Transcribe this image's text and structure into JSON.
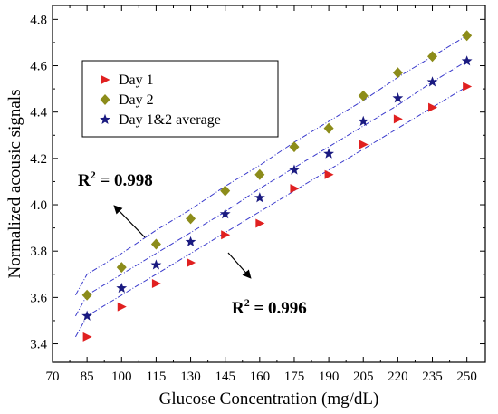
{
  "chart_data": {
    "type": "scatter",
    "xlabel": "Glucose Concentration (mg/dL)",
    "ylabel": "Normalized acousic signals",
    "xlim": [
      70,
      258
    ],
    "ylim": [
      3.32,
      4.86
    ],
    "x_ticks": [
      "70",
      "85",
      "100",
      "115",
      "130",
      "145",
      "160",
      "175",
      "190",
      "205",
      "220",
      "235",
      "250"
    ],
    "y_ticks": [
      "3.4",
      "3.6",
      "3.8",
      "4.0",
      "4.2",
      "4.4",
      "4.6",
      "4.8"
    ],
    "x_tick_values": [
      70,
      85,
      100,
      115,
      130,
      145,
      160,
      175,
      190,
      205,
      220,
      235,
      250
    ],
    "y_tick_values": [
      3.4,
      3.6,
      3.8,
      4.0,
      4.2,
      4.4,
      4.6,
      4.8
    ],
    "grid": false,
    "legend_position": "top-left",
    "x": [
      85,
      100,
      115,
      130,
      145,
      160,
      175,
      190,
      205,
      220,
      235,
      250
    ],
    "series": [
      {
        "name": "Day 1",
        "marker": "triangle-right",
        "color": "#e02020",
        "values": [
          3.43,
          3.56,
          3.66,
          3.75,
          3.87,
          3.92,
          4.07,
          4.13,
          4.26,
          4.37,
          4.42,
          4.51
        ],
        "fit": [
          3.43,
          3.52,
          3.61,
          3.7,
          3.79,
          3.88,
          3.97,
          4.06,
          4.15,
          4.24,
          4.33,
          4.42,
          4.51
        ]
      },
      {
        "name": "Day 2",
        "marker": "diamond",
        "color": "#8c8c1a",
        "values": [
          3.61,
          3.73,
          3.83,
          3.94,
          4.06,
          4.13,
          4.25,
          4.33,
          4.47,
          4.57,
          4.64,
          4.73
        ],
        "fit": [
          3.61,
          3.7,
          3.79,
          3.89,
          3.98,
          4.08,
          4.17,
          4.27,
          4.36,
          4.45,
          4.55,
          4.64,
          4.73
        ]
      },
      {
        "name": "Day 1&2 average",
        "marker": "star",
        "color": "#1a1a80",
        "values": [
          3.52,
          3.64,
          3.74,
          3.84,
          3.96,
          4.03,
          4.15,
          4.22,
          4.36,
          4.46,
          4.53,
          4.62
        ],
        "fit": [
          3.52,
          3.61,
          3.7,
          3.79,
          3.88,
          3.97,
          4.07,
          4.16,
          4.25,
          4.34,
          4.43,
          4.53,
          4.62
        ]
      }
    ],
    "fit_color": "#3a3acc",
    "annotations": [
      {
        "base": "R",
        "sup": "2",
        "text": " = 0.998"
      },
      {
        "base": "R",
        "sup": "2",
        "text": " = 0.996"
      }
    ]
  }
}
